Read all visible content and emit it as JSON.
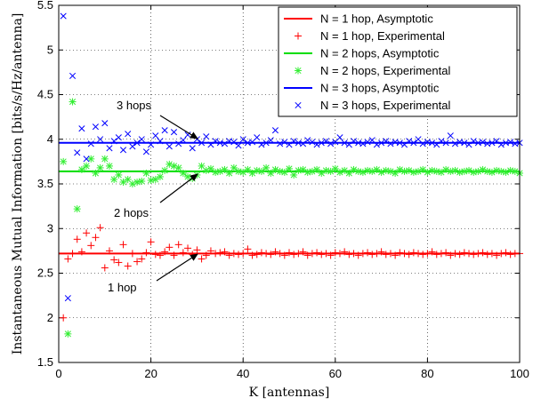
{
  "chart_data": {
    "type": "line",
    "xlabel": "K [antennas]",
    "ylabel": "Instantaneous Mutual Information [bits/s/Hz/antenna]",
    "xlim": [
      0,
      100
    ],
    "ylim": [
      1.5,
      5.5
    ],
    "xticks": [
      0,
      20,
      40,
      60,
      80,
      100
    ],
    "yticks": [
      1.5,
      2,
      2.5,
      3,
      3.5,
      4,
      4.5,
      5,
      5.5
    ],
    "grid": true,
    "legend_position": "top-right",
    "series": [
      {
        "name": "N = 1 hop, Asymptotic",
        "kind": "line",
        "color": "#ff0000",
        "value": 2.72
      },
      {
        "name": "N = 1 hop, Experimental",
        "kind": "marker",
        "marker": "+",
        "color": "#ff0000",
        "x": [
          1,
          2,
          3,
          4,
          5,
          6,
          7,
          8,
          9,
          10,
          11,
          12,
          13,
          14,
          15,
          16,
          17,
          18,
          19,
          20,
          21,
          22,
          23,
          24,
          25,
          26,
          27,
          28,
          29,
          30,
          31,
          32,
          33,
          34,
          35,
          36,
          37,
          38,
          39,
          40,
          41,
          42,
          43,
          44,
          45,
          46,
          47,
          48,
          49,
          50,
          51,
          52,
          53,
          54,
          55,
          56,
          57,
          58,
          59,
          60,
          61,
          62,
          63,
          64,
          65,
          66,
          67,
          68,
          69,
          70,
          71,
          72,
          73,
          74,
          75,
          76,
          77,
          78,
          79,
          80,
          81,
          82,
          83,
          84,
          85,
          86,
          87,
          88,
          89,
          90,
          91,
          92,
          93,
          94,
          95,
          96,
          97,
          98,
          99,
          100
        ],
        "y": [
          2.0,
          2.66,
          2.72,
          2.88,
          2.74,
          2.95,
          2.81,
          2.9,
          3.01,
          2.56,
          2.75,
          2.65,
          2.62,
          2.82,
          2.58,
          2.72,
          2.63,
          2.66,
          2.73,
          2.85,
          2.71,
          2.7,
          2.74,
          2.79,
          2.7,
          2.82,
          2.73,
          2.78,
          2.71,
          2.76,
          2.66,
          2.7,
          2.75,
          2.72,
          2.73,
          2.74,
          2.7,
          2.72,
          2.71,
          2.72,
          2.77,
          2.7,
          2.71,
          2.73,
          2.72,
          2.71,
          2.74,
          2.72,
          2.7,
          2.73,
          2.71,
          2.72,
          2.74,
          2.7,
          2.72,
          2.73,
          2.71,
          2.72,
          2.7,
          2.73,
          2.72,
          2.74,
          2.71,
          2.72,
          2.7,
          2.72,
          2.73,
          2.71,
          2.72,
          2.74,
          2.71,
          2.72,
          2.7,
          2.73,
          2.72,
          2.71,
          2.73,
          2.72,
          2.71,
          2.72,
          2.74,
          2.71,
          2.72,
          2.73,
          2.7,
          2.72,
          2.71,
          2.73,
          2.72,
          2.71,
          2.72,
          2.73,
          2.71,
          2.72,
          2.7,
          2.72,
          2.73,
          2.71,
          2.72,
          2.72
        ]
      },
      {
        "name": "N = 2 hops, Asymptotic",
        "kind": "line",
        "color": "#00dd00",
        "value": 3.64
      },
      {
        "name": "N = 2 hops, Experimental",
        "kind": "marker",
        "marker": "*",
        "color": "#33ee33",
        "x": [
          1,
          2,
          3,
          4,
          5,
          6,
          7,
          8,
          9,
          10,
          11,
          12,
          13,
          14,
          15,
          16,
          17,
          18,
          19,
          20,
          21,
          22,
          23,
          24,
          25,
          26,
          27,
          28,
          29,
          30,
          31,
          32,
          33,
          34,
          35,
          36,
          37,
          38,
          39,
          40,
          41,
          42,
          43,
          44,
          45,
          46,
          47,
          48,
          49,
          50,
          51,
          52,
          53,
          54,
          55,
          56,
          57,
          58,
          59,
          60,
          61,
          62,
          63,
          64,
          65,
          66,
          67,
          68,
          69,
          70,
          71,
          72,
          73,
          74,
          75,
          76,
          77,
          78,
          79,
          80,
          81,
          82,
          83,
          84,
          85,
          86,
          87,
          88,
          89,
          90,
          91,
          92,
          93,
          94,
          95,
          96,
          97,
          98,
          99,
          100
        ],
        "y": [
          3.75,
          1.82,
          4.42,
          3.22,
          3.66,
          3.7,
          3.78,
          3.62,
          3.68,
          3.78,
          3.7,
          3.55,
          3.6,
          3.52,
          3.55,
          3.5,
          3.52,
          3.53,
          3.62,
          3.54,
          3.55,
          3.58,
          3.65,
          3.72,
          3.7,
          3.68,
          3.62,
          3.58,
          3.56,
          3.6,
          3.7,
          3.65,
          3.67,
          3.63,
          3.64,
          3.66,
          3.62,
          3.68,
          3.64,
          3.63,
          3.66,
          3.62,
          3.65,
          3.64,
          3.68,
          3.62,
          3.66,
          3.64,
          3.63,
          3.67,
          3.6,
          3.65,
          3.66,
          3.63,
          3.64,
          3.66,
          3.62,
          3.65,
          3.64,
          3.67,
          3.63,
          3.65,
          3.62,
          3.66,
          3.64,
          3.63,
          3.65,
          3.64,
          3.66,
          3.63,
          3.65,
          3.64,
          3.62,
          3.66,
          3.64,
          3.65,
          3.63,
          3.64,
          3.66,
          3.63,
          3.65,
          3.64,
          3.63,
          3.66,
          3.64,
          3.65,
          3.63,
          3.64,
          3.65,
          3.63,
          3.64,
          3.66,
          3.64,
          3.63,
          3.65,
          3.64,
          3.63,
          3.65,
          3.64,
          3.62
        ]
      },
      {
        "name": "N = 3 hops, Asymptotic",
        "kind": "line",
        "color": "#0000ff",
        "value": 3.96
      },
      {
        "name": "N = 3 hops, Experimental",
        "kind": "marker",
        "marker": "x",
        "color": "#0000ff",
        "x": [
          1,
          2,
          3,
          4,
          5,
          6,
          7,
          8,
          9,
          10,
          11,
          12,
          13,
          14,
          15,
          16,
          17,
          18,
          19,
          20,
          21,
          22,
          23,
          24,
          25,
          26,
          27,
          28,
          29,
          30,
          31,
          32,
          33,
          34,
          35,
          36,
          37,
          38,
          39,
          40,
          41,
          42,
          43,
          44,
          45,
          46,
          47,
          48,
          49,
          50,
          51,
          52,
          53,
          54,
          55,
          56,
          57,
          58,
          59,
          60,
          61,
          62,
          63,
          64,
          65,
          66,
          67,
          68,
          69,
          70,
          71,
          72,
          73,
          74,
          75,
          76,
          77,
          78,
          79,
          80,
          81,
          82,
          83,
          84,
          85,
          86,
          87,
          88,
          89,
          90,
          91,
          92,
          93,
          94,
          95,
          96,
          97,
          98,
          99,
          100
        ],
        "y": [
          5.38,
          2.22,
          4.71,
          3.85,
          4.12,
          3.78,
          3.95,
          4.14,
          4.0,
          4.18,
          3.9,
          3.98,
          4.02,
          3.88,
          4.06,
          3.92,
          3.96,
          4.0,
          3.86,
          3.94,
          4.04,
          3.98,
          4.1,
          3.92,
          4.08,
          3.95,
          3.99,
          4.05,
          3.9,
          4.0,
          3.96,
          4.03,
          3.94,
          3.98,
          3.96,
          3.95,
          3.98,
          3.97,
          3.93,
          4.0,
          3.96,
          3.97,
          4.02,
          3.94,
          3.96,
          3.99,
          4.1,
          3.95,
          3.97,
          3.94,
          3.98,
          3.96,
          3.95,
          3.99,
          3.97,
          3.94,
          3.96,
          3.98,
          3.95,
          3.97,
          4.02,
          3.96,
          3.94,
          3.98,
          3.96,
          3.95,
          3.97,
          3.99,
          3.94,
          3.96,
          3.98,
          3.95,
          3.97,
          3.96,
          3.94,
          3.98,
          3.96,
          4.0,
          3.95,
          3.97,
          3.96,
          3.94,
          3.98,
          3.96,
          4.04,
          3.95,
          3.97,
          3.96,
          3.94,
          3.98,
          3.96,
          3.97,
          3.95,
          3.96,
          3.98,
          3.94,
          3.96,
          3.97,
          3.95,
          3.96
        ]
      }
    ],
    "annotations": [
      {
        "text": "3 hops",
        "x": 30,
        "y": 3.96
      },
      {
        "text": "2 hops",
        "x": 30,
        "y": 3.64
      },
      {
        "text": "1 hop",
        "x": 30,
        "y": 2.72
      }
    ]
  }
}
